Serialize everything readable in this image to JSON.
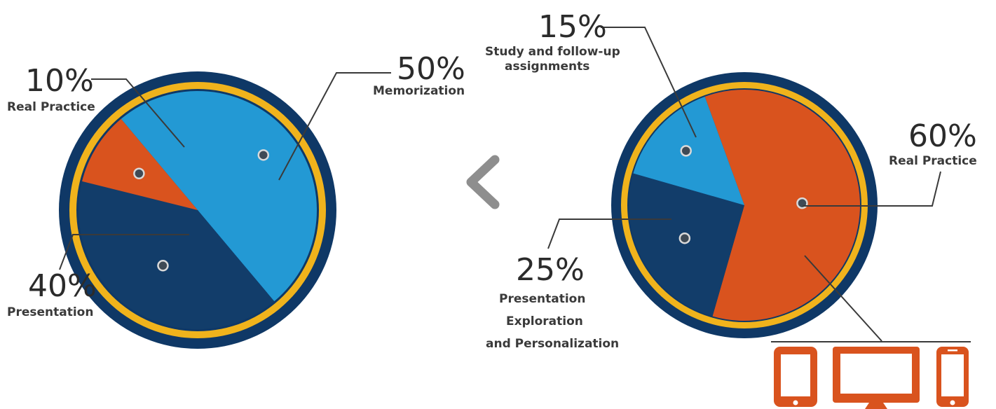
{
  "colors": {
    "dark_navy": "#123d6a",
    "light_blue": "#2399d4",
    "orange": "#d9531e",
    "gold": "#f0b31c",
    "rim": "#0f3866",
    "chevron": "#8e8e8e",
    "text": "#2b2b2b"
  },
  "chart_data": [
    {
      "type": "pie",
      "slices": [
        {
          "key": "memorization",
          "percent_label": "50%",
          "label": "Memorization",
          "value": 50,
          "color": "#2399d4"
        },
        {
          "key": "presentation",
          "percent_label": "40%",
          "label": "Presentation",
          "value": 40,
          "color": "#123d6a"
        },
        {
          "key": "real_practice",
          "percent_label": "10%",
          "label": "Real Practice",
          "value": 10,
          "color": "#d9531e"
        }
      ]
    },
    {
      "type": "pie",
      "slices": [
        {
          "key": "real_practice",
          "percent_label": "60%",
          "label": "Real Practice",
          "value": 60,
          "color": "#d9531e"
        },
        {
          "key": "presentation_exploration",
          "percent_label": "25%",
          "label_lines": [
            "Presentation",
            "Exploration",
            "and Personalization"
          ],
          "value": 25,
          "color": "#123d6a"
        },
        {
          "key": "study",
          "percent_label": "15%",
          "label_lines": [
            "Study and follow-up",
            "assignments"
          ],
          "value": 15,
          "color": "#2399d4"
        }
      ]
    }
  ],
  "icons": [
    "chevron-left-icon",
    "tablet-icon",
    "monitor-icon",
    "smartphone-icon"
  ]
}
